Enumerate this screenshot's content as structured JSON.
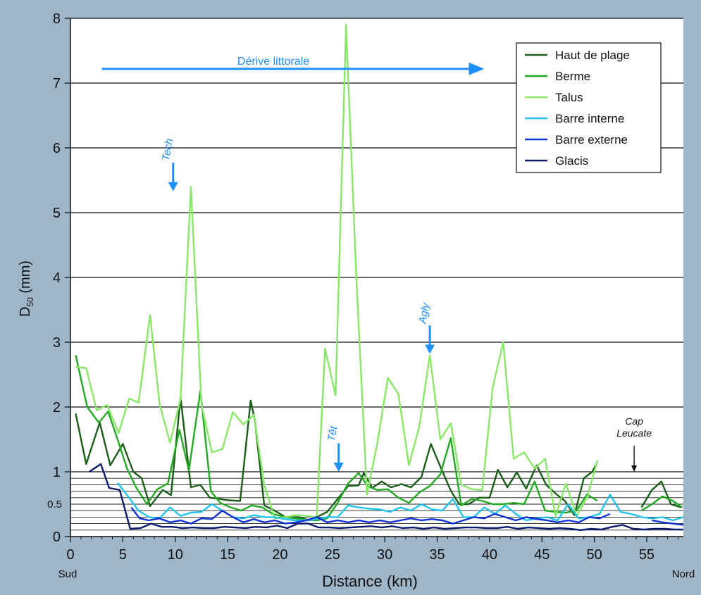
{
  "chart_data": {
    "type": "line",
    "xlabel": "Distance (km)",
    "ylabel": "D",
    "ylabel_sub": "50",
    "ylabel_unit": " (mm)",
    "xlim": [
      0,
      58.5
    ],
    "ylim": [
      0,
      8
    ],
    "x_ticks": [
      0,
      5,
      10,
      15,
      20,
      25,
      30,
      35,
      40,
      45,
      50,
      55
    ],
    "y_ticks": [
      0,
      1,
      2,
      3,
      4,
      5,
      6,
      7,
      8
    ],
    "y_tick_labels": [
      "0",
      "1",
      "2",
      "3",
      "4",
      "5",
      "6",
      "7",
      "8"
    ],
    "y_minor_label": "0.5",
    "y_minor_grid": [
      0.1,
      0.2,
      0.3,
      0.4,
      0.5,
      0.6,
      0.7,
      0.8,
      0.9
    ],
    "x_end_labels": {
      "left": "Sud",
      "right": "Nord"
    },
    "legend_position": "top-right",
    "background": "#ffffff",
    "series": [
      {
        "name": "Haut de plage",
        "color": "#1a5e1a",
        "x": [
          0.5,
          1.5,
          2.8,
          3.8,
          5,
          6,
          6.8,
          7.6,
          8.8,
          9.6,
          10.5,
          11.5,
          12.4,
          13.3,
          14.2,
          15.1,
          16.2,
          17.2,
          17.6,
          18.5,
          19.5,
          20.5,
          21.8,
          22.8,
          23.5,
          24.5,
          25.5,
          26.5,
          27.5,
          28,
          28.8,
          29.7,
          30.6,
          31.6,
          32.5,
          33.5,
          34.4,
          35.3,
          36.3,
          37.1,
          38,
          39,
          40,
          40.8,
          41.7,
          42.6,
          43.5,
          44.5,
          45.4,
          46.4,
          47.2,
          48.1,
          49,
          49.8,
          50.2,
          null,
          54.5,
          55.5,
          56.4,
          57.3,
          58.3
        ],
        "values": [
          1.9,
          1.12,
          1.76,
          1.1,
          1.43,
          1.0,
          0.9,
          0.47,
          0.72,
          0.64,
          2.15,
          0.76,
          0.8,
          0.6,
          0.58,
          0.56,
          0.55,
          2.1,
          1.8,
          0.48,
          0.4,
          0.3,
          0.3,
          0.25,
          0.3,
          0.38,
          0.58,
          0.78,
          0.79,
          0.98,
          0.75,
          0.85,
          0.76,
          0.81,
          0.76,
          0.92,
          1.43,
          1.08,
          0.71,
          0.5,
          0.5,
          0.6,
          0.6,
          1.03,
          0.76,
          0.99,
          0.74,
          1.1,
          0.8,
          0.65,
          0.55,
          0.33,
          0.9,
          1.0,
          1.12,
          null,
          0.45,
          0.72,
          0.85,
          0.5,
          0.45
        ]
      },
      {
        "name": "Berme",
        "color": "#22aa22",
        "x": [
          0.5,
          1.6,
          2.7,
          3.6,
          4.5,
          5.4,
          6.3,
          7.3,
          8.3,
          9.3,
          10.4,
          11.3,
          12.4,
          13.4,
          14.3,
          15.3,
          16.3,
          17.3,
          18.3,
          19.3,
          20.5,
          21.5,
          22.5,
          23.5,
          24.5,
          25.5,
          26.5,
          27.5,
          28.4,
          29.3,
          30.3,
          31.3,
          32.3,
          33.3,
          34.3,
          35.3,
          36.3,
          37.3,
          38.3,
          39.3,
          40.3,
          41.3,
          42.3,
          43.3,
          44.3,
          45.3,
          46.3,
          47.3,
          48.3,
          49.3,
          50.3,
          null,
          54.5,
          55.5,
          56.5,
          57.5,
          58.4
        ],
        "values": [
          2.8,
          2.0,
          1.76,
          1.93,
          1.5,
          1.05,
          0.75,
          0.5,
          0.73,
          0.82,
          1.65,
          1.02,
          2.25,
          0.7,
          0.52,
          0.45,
          0.4,
          0.48,
          0.45,
          0.35,
          0.3,
          0.28,
          0.26,
          0.25,
          0.28,
          0.52,
          0.82,
          0.98,
          0.77,
          0.72,
          0.73,
          0.6,
          0.52,
          0.68,
          0.78,
          0.96,
          1.52,
          0.48,
          0.58,
          0.55,
          0.5,
          0.5,
          0.52,
          0.5,
          0.85,
          0.4,
          0.38,
          0.37,
          0.4,
          0.65,
          0.55,
          null,
          0.4,
          0.5,
          0.62,
          0.55,
          0.45
        ]
      },
      {
        "name": "Talus",
        "color": "#88e868",
        "x": [
          0.5,
          1.5,
          2.5,
          3.5,
          4.6,
          5.6,
          6.5,
          7.6,
          8.5,
          9.5,
          10.5,
          11.5,
          12.5,
          13.5,
          14.5,
          15.5,
          16.5,
          17.5,
          18.5,
          19.5,
          20.5,
          21.5,
          22.5,
          23.5,
          24.3,
          25.3,
          26.3,
          27.3,
          28.3,
          29.3,
          30.3,
          31.3,
          32.3,
          33.3,
          34.3,
          35.3,
          36.3,
          37.3,
          38.3,
          39.3,
          40.3,
          41.3,
          42.3,
          43.3,
          44.3,
          45.3,
          46.3,
          47.3,
          48.3,
          49.3,
          50.3
        ],
        "values": [
          2.62,
          2.6,
          1.95,
          2.03,
          1.6,
          2.13,
          2.07,
          3.42,
          2.05,
          1.45,
          2.12,
          5.4,
          2.04,
          1.3,
          1.35,
          1.92,
          1.73,
          1.88,
          0.8,
          0.28,
          0.3,
          0.33,
          0.32,
          0.3,
          2.9,
          2.18,
          7.9,
          3.95,
          0.65,
          1.45,
          2.45,
          2.2,
          1.1,
          1.7,
          2.8,
          1.5,
          1.75,
          0.8,
          0.73,
          0.72,
          2.3,
          3.0,
          1.2,
          1.3,
          1.05,
          1.2,
          0.32,
          0.82,
          0.32,
          0.6,
          1.18
        ]
      },
      {
        "name": "Barre interne",
        "color": "#22c4ee",
        "x": [
          0.5,
          1.5,
          2.5,
          3.5,
          4.5,
          5.5,
          6.5,
          7.5,
          8.5,
          9.5,
          10.5,
          11.5,
          12.5,
          13.5,
          14.5,
          15.5,
          16.5,
          17.5,
          18.5,
          19.5,
          20.5,
          21.5,
          22.5,
          23.5,
          24.5,
          25.5,
          26.5,
          27.5,
          28.5,
          29.5,
          30.5,
          31.5,
          32.5,
          33.5,
          34.5,
          35.5,
          36.5,
          37.5,
          38.5,
          39.5,
          40.5,
          41.5,
          42.5,
          43.5,
          44.5,
          45.5,
          46.5,
          47.5,
          48.5,
          49.5,
          50.5,
          51.5,
          52.5,
          53.5,
          54.5,
          55.5,
          56.5,
          57.5,
          58.5
        ],
        "values": [
          null,
          null,
          null,
          null,
          0.83,
          0.62,
          0.4,
          0.3,
          0.28,
          0.45,
          0.32,
          0.37,
          0.38,
          0.5,
          0.4,
          0.3,
          0.28,
          0.33,
          0.3,
          0.3,
          0.27,
          0.25,
          0.25,
          0.27,
          0.3,
          0.3,
          0.48,
          0.45,
          0.43,
          0.42,
          0.38,
          0.45,
          0.4,
          0.5,
          0.42,
          0.4,
          0.58,
          0.3,
          0.3,
          0.45,
          0.35,
          0.48,
          0.35,
          0.25,
          0.28,
          0.3,
          0.25,
          0.5,
          0.28,
          0.3,
          0.35,
          0.65,
          0.38,
          0.35,
          0.3,
          0.28,
          0.3,
          0.25,
          0.3
        ]
      },
      {
        "name": "Barre externe",
        "color": "#1030d8",
        "x": [
          5.8,
          6.6,
          7.5,
          8.5,
          9.5,
          10.5,
          11.5,
          12.5,
          13.5,
          14.5,
          15.5,
          16.5,
          17.5,
          18.5,
          19.5,
          20.5,
          21.5,
          22.5,
          23.5,
          24.5,
          25.5,
          26.5,
          27.5,
          28.5,
          29.5,
          30.5,
          31.5,
          32.5,
          33.5,
          34.5,
          35.5,
          36.5,
          37.5,
          38.5,
          39.5,
          40.5,
          41.5,
          42.5,
          43.5,
          44.5,
          45.5,
          46.5,
          47.5,
          48.5,
          49.5,
          50.5,
          51.5,
          null,
          55.5,
          56.5,
          57.5,
          58.5
        ],
        "values": [
          0.45,
          0.28,
          0.25,
          0.28,
          0.22,
          0.25,
          0.2,
          0.28,
          0.27,
          0.4,
          0.3,
          0.22,
          0.27,
          0.22,
          0.25,
          0.2,
          0.22,
          0.25,
          0.3,
          0.22,
          0.25,
          0.22,
          0.25,
          0.22,
          0.25,
          0.22,
          0.25,
          0.28,
          0.25,
          0.27,
          0.25,
          0.2,
          0.25,
          0.3,
          0.28,
          0.35,
          0.3,
          0.25,
          0.3,
          0.27,
          0.25,
          0.22,
          0.25,
          0.22,
          0.3,
          0.28,
          0.35,
          null,
          0.25,
          0.22,
          0.2,
          0.18
        ]
      },
      {
        "name": "Glacis",
        "color": "#0c1a70",
        "x": [
          1.8,
          2.9,
          3.7,
          4.7,
          5.7,
          6.7,
          7.7,
          8.7,
          9.7,
          10.7,
          11.7,
          12.7,
          13.7,
          14.7,
          15.7,
          16.7,
          17.7,
          18.7,
          19.7,
          20.7,
          21.7,
          22.7,
          23.7,
          24.7,
          25.7,
          26.7,
          27.7,
          28.7,
          29.7,
          30.7,
          31.7,
          32.7,
          33.7,
          34.7,
          35.7,
          36.7,
          37.7,
          38.7,
          39.7,
          40.7,
          41.7,
          42.7,
          43.7,
          44.7,
          45.7,
          46.7,
          47.7,
          48.7,
          49.7,
          50.7,
          51.7,
          52.7,
          53.7,
          54.7,
          55.7,
          56.7,
          57.7,
          58.5
        ],
        "values": [
          1.0,
          1.12,
          0.75,
          0.72,
          0.12,
          0.13,
          0.2,
          0.15,
          0.15,
          0.13,
          0.14,
          0.13,
          0.13,
          0.15,
          0.14,
          0.13,
          0.15,
          0.14,
          0.17,
          0.13,
          0.2,
          0.2,
          0.14,
          0.14,
          0.13,
          0.14,
          0.15,
          0.16,
          0.14,
          0.16,
          0.13,
          0.14,
          0.12,
          0.14,
          0.12,
          0.13,
          0.14,
          0.14,
          0.13,
          0.13,
          0.15,
          0.12,
          0.14,
          0.13,
          0.12,
          0.13,
          0.12,
          0.1,
          0.12,
          0.11,
          0.15,
          0.18,
          0.12,
          0.11,
          0.12,
          0.12,
          0.11,
          0.11
        ]
      }
    ],
    "annotations": [
      {
        "id": "derive",
        "text": "Dérive littorale",
        "color": "#1e90ff",
        "kind": "horizontal-arrow",
        "x_from": 3,
        "x_to": 39.5,
        "y": 7.22
      },
      {
        "id": "tech",
        "text": "Tech",
        "color": "#1e90ff",
        "kind": "down-arrow",
        "x": 9.8,
        "y_from": 5.77,
        "y_to": 5.33
      },
      {
        "id": "tet",
        "text": "Têt",
        "color": "#1e90ff",
        "kind": "down-arrow",
        "x": 25.6,
        "y_from": 1.44,
        "y_to": 1.0
      },
      {
        "id": "agly",
        "text": "Agly",
        "color": "#1e90ff",
        "kind": "down-arrow",
        "x": 34.3,
        "y_from": 3.26,
        "y_to": 2.82
      },
      {
        "id": "leucate",
        "text_lines": [
          "Cap",
          "Leucate"
        ],
        "color": "#111111",
        "kind": "down-arrow",
        "x": 53.8,
        "y_from": 1.4,
        "y_to": 1.0
      }
    ]
  }
}
